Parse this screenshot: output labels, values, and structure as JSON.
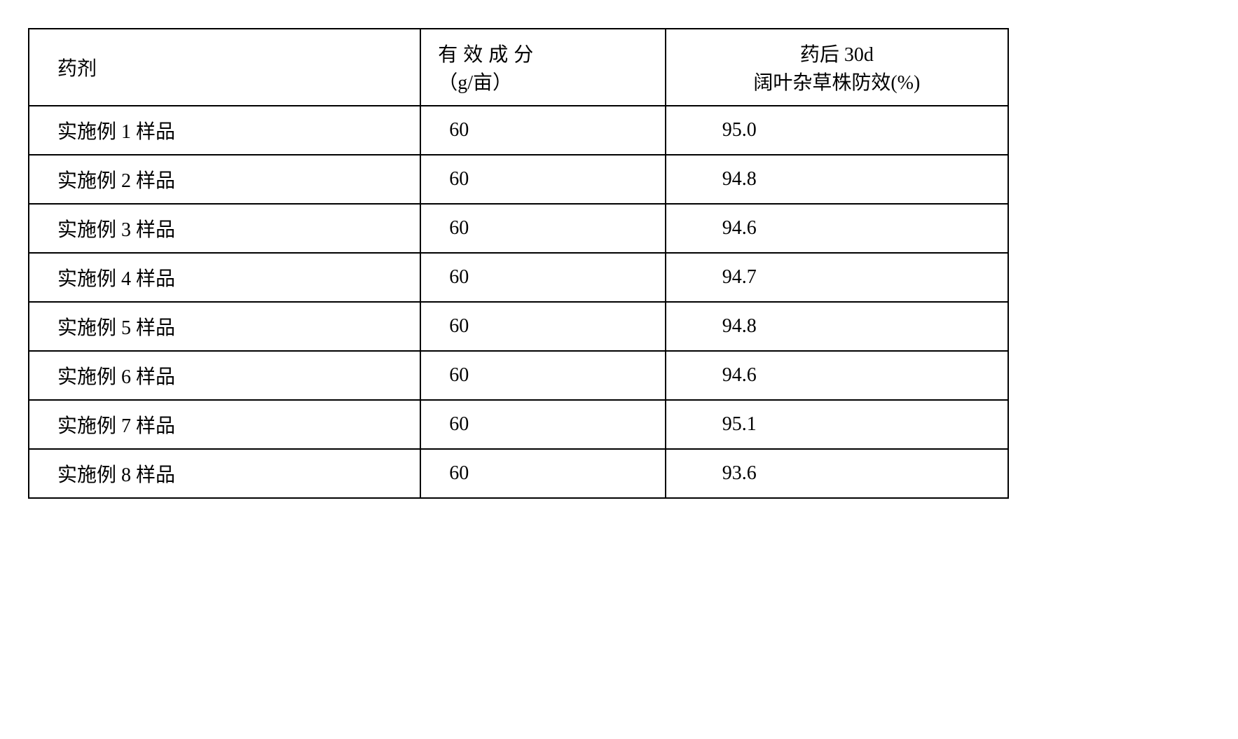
{
  "table": {
    "headers": {
      "agent": "药剂",
      "dose_line1": "有效成分",
      "dose_line2": "（g/亩）",
      "eff_line1": "药后 30d",
      "eff_line2": "阔叶杂草株防效(%)"
    },
    "rows": [
      {
        "agent": "实施例 1 样品",
        "dose": "60",
        "eff": "95.0"
      },
      {
        "agent": "实施例 2 样品",
        "dose": "60",
        "eff": "94.8"
      },
      {
        "agent": "实施例 3 样品",
        "dose": "60",
        "eff": "94.6"
      },
      {
        "agent": "实施例 4 样品",
        "dose": "60",
        "eff": "94.7"
      },
      {
        "agent": "实施例 5 样品",
        "dose": "60",
        "eff": "94.8"
      },
      {
        "agent": "实施例 6 样品",
        "dose": "60",
        "eff": "94.6"
      },
      {
        "agent": "实施例 7 样品",
        "dose": "60",
        "eff": "95.1"
      },
      {
        "agent": "实施例 8 样品",
        "dose": "60",
        "eff": "93.6"
      }
    ],
    "border_color": "#000000",
    "background_color": "#ffffff",
    "font_size_pt": 28,
    "font_family": "SimSun"
  }
}
